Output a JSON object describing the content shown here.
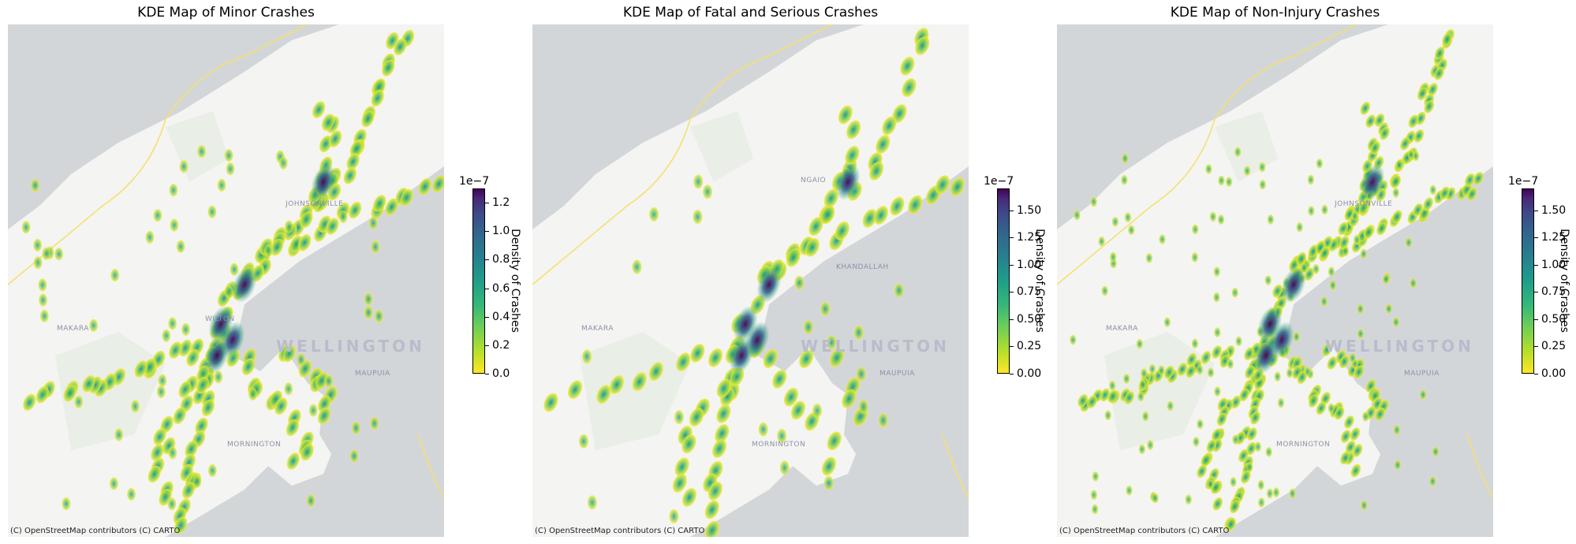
{
  "figure": {
    "attribution": "(C) OpenStreetMap contributors (C) CARTO",
    "colormap": "viridis_r",
    "colors": {
      "land": "#f4f4f2",
      "water": "#d3d6d9",
      "park": "#e6ece4",
      "boundary": "#f5e06a",
      "low": "#fde725",
      "mid": "#21918c",
      "high": "#440154"
    }
  },
  "panels": [
    {
      "title": "KDE Map of Minor Crashes",
      "colorbar_label": "Density of Crashes",
      "colorbar_exponent": "1e−7",
      "ticks": [
        "0.0",
        "0.2",
        "0.4",
        "0.6",
        "0.8",
        "1.0",
        "1.2"
      ],
      "tick_values": [
        0.0,
        0.2,
        0.4,
        0.6,
        0.8,
        1.0,
        1.2
      ],
      "vmax": 1.3,
      "place_labels": [
        "MAKARA",
        "JOHNSONVILLE",
        "WILTON",
        "WELLINGTON",
        "MAUPUIA",
        "MORNINGTON"
      ]
    },
    {
      "title": "KDE Map of Fatal and Serious Crashes",
      "colorbar_label": "Density of Crashes",
      "colorbar_exponent": "1e−7",
      "ticks": [
        "0.00",
        "0.25",
        "0.50",
        "0.75",
        "1.00",
        "1.25",
        "1.50"
      ],
      "tick_values": [
        0.0,
        0.25,
        0.5,
        0.75,
        1.0,
        1.25,
        1.5
      ],
      "vmax": 1.7,
      "place_labels": [
        "MAKARA",
        "NGAIO",
        "KHANDALLAH",
        "WELLINGTON",
        "MAUPUIA",
        "MORNINGTON"
      ]
    },
    {
      "title": "KDE Map of Non-Injury Crashes",
      "colorbar_label": "Density of Crashes",
      "colorbar_exponent": "1e−7",
      "ticks": [
        "0.00",
        "0.25",
        "0.50",
        "0.75",
        "1.00",
        "1.25",
        "1.50"
      ],
      "tick_values": [
        0.0,
        0.25,
        0.5,
        0.75,
        1.0,
        1.25,
        1.5
      ],
      "vmax": 1.7,
      "place_labels": [
        "MAKARA",
        "JOHNSONVILLE",
        "WELLINGTON",
        "MAUPUIA",
        "MORNINGTON"
      ]
    }
  ]
}
